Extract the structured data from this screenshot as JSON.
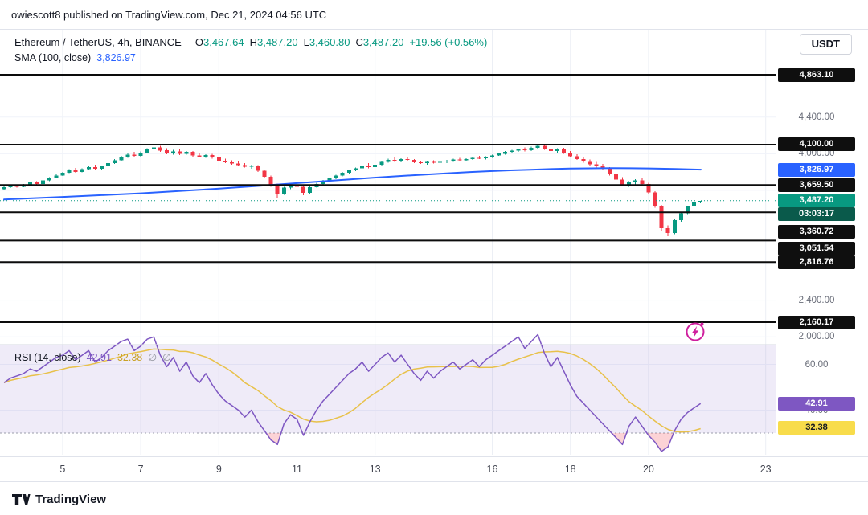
{
  "publish_bar": {
    "text": "owiescott8 published on TradingView.com, Dec 21, 2024 04:56 UTC"
  },
  "header": {
    "symbol_title": "Ethereum / TetherUS, 4h, BINANCE",
    "ohlc": {
      "o_label": "O",
      "o": "3,467.64",
      "h_label": "H",
      "h": "3,487.20",
      "l_label": "L",
      "l": "3,460.80",
      "c_label": "C",
      "c": "3,487.20",
      "change": "+19.56 (+0.56%)"
    },
    "sma_label": "SMA (100, close)",
    "sma_value": "3,826.97",
    "currency_button": "USDT"
  },
  "rsi_legend": {
    "label": "RSI (14, close)",
    "value": "42.91",
    "ma_value": "32.38",
    "empty1": "∅",
    "empty2": "∅"
  },
  "axis": {
    "ticks_main": [
      {
        "text": "4,400.00",
        "price": 4400
      },
      {
        "text": "4,000.00",
        "price": 4000
      },
      {
        "text": "2,400.00",
        "price": 2400
      },
      {
        "text": "2,000.00",
        "price": 2000
      }
    ],
    "ticks_rsi": [
      {
        "text": "60.00",
        "value": 60
      },
      {
        "text": "40.00",
        "value": 40
      }
    ],
    "level_badges": [
      {
        "text": "4,863.10"
      },
      {
        "text": "4,100.00"
      },
      {
        "text": "3,659.50"
      },
      {
        "text": "3,360.72"
      },
      {
        "text": "3,051.54"
      },
      {
        "text": "2,816.76"
      },
      {
        "text": "2,160.17"
      }
    ],
    "sma_badge": {
      "text": "3,826.97"
    },
    "price_badge": {
      "text": "3,487.20"
    },
    "countdown_badge": {
      "text": "03:03:17"
    },
    "rsi_badge": {
      "text": "42.91"
    },
    "rsi_ma_badge": {
      "text": "32.38"
    }
  },
  "x_axis": {
    "labels": [
      {
        "text": "5",
        "day": 5
      },
      {
        "text": "7",
        "day": 7
      },
      {
        "text": "9",
        "day": 9
      },
      {
        "text": "11",
        "day": 11
      },
      {
        "text": "13",
        "day": 13
      },
      {
        "text": "16",
        "day": 16
      },
      {
        "text": "18",
        "day": 18
      },
      {
        "text": "20",
        "day": 20
      },
      {
        "text": "23",
        "day": 23
      }
    ]
  },
  "footer": {
    "brand": "TradingView"
  },
  "colors": {
    "up": "#089981",
    "down": "#f23645",
    "sma": "#2962ff",
    "rsi": "#7e57c2",
    "rsi_ma": "#e8c14a",
    "level": "#0c0c0c",
    "badge_dark": "#0f0f0f",
    "badge_countdown": "#0a5a4b",
    "badge_yellow": "#f8dc4b",
    "flash": "#cf1f9e"
  },
  "chart_data": {
    "type": "candlestick",
    "title": "Ethereum / TetherUS, 4h, BINANCE",
    "timeframe": "4h",
    "quote_currency": "USDT",
    "current_price": 3487.2,
    "sma_value": 3826.97,
    "rsi_value": 42.91,
    "rsi_ma_value": 32.38,
    "rsi_band": [
      30,
      70
    ],
    "levels": [
      4863.1,
      4100.0,
      3659.5,
      3360.72,
      3051.54,
      2816.76,
      2160.17
    ],
    "price_axis_range": [
      2000,
      4900
    ],
    "x_range_days": [
      "Dec 3",
      "Dec 21"
    ],
    "candles": [
      [
        3615,
        3642,
        3598,
        3634
      ],
      [
        3634,
        3656,
        3626,
        3648
      ],
      [
        3648,
        3661,
        3629,
        3640
      ],
      [
        3640,
        3671,
        3636,
        3664
      ],
      [
        3664,
        3694,
        3659,
        3687
      ],
      [
        3687,
        3699,
        3657,
        3670
      ],
      [
        3670,
        3716,
        3666,
        3709
      ],
      [
        3709,
        3744,
        3701,
        3737
      ],
      [
        3737,
        3774,
        3729,
        3763
      ],
      [
        3763,
        3801,
        3756,
        3793
      ],
      [
        3793,
        3831,
        3786,
        3821
      ],
      [
        3821,
        3846,
        3791,
        3803
      ],
      [
        3803,
        3839,
        3796,
        3831
      ],
      [
        3831,
        3869,
        3823,
        3856
      ],
      [
        3856,
        3881,
        3821,
        3836
      ],
      [
        3836,
        3871,
        3829,
        3863
      ],
      [
        3863,
        3906,
        3856,
        3896
      ],
      [
        3896,
        3941,
        3889,
        3929
      ],
      [
        3929,
        3976,
        3921,
        3963
      ],
      [
        3963,
        4001,
        3953,
        3989
      ],
      [
        3989,
        4021,
        3961,
        3976
      ],
      [
        3976,
        4026,
        3969,
        4013
      ],
      [
        4013,
        4061,
        4006,
        4049
      ],
      [
        4049,
        4091,
        4036,
        4071
      ],
      [
        4071,
        4086,
        4021,
        4036
      ],
      [
        4036,
        4059,
        3996,
        4009
      ],
      [
        4009,
        4041,
        3991,
        4026
      ],
      [
        4026,
        4046,
        3986,
        3999
      ],
      [
        3999,
        4031,
        3991,
        4019
      ],
      [
        4019,
        4029,
        3969,
        3981
      ],
      [
        3981,
        4006,
        3959,
        3969
      ],
      [
        3969,
        3996,
        3956,
        3986
      ],
      [
        3986,
        3999,
        3946,
        3959
      ],
      [
        3959,
        3971,
        3916,
        3926
      ],
      [
        3926,
        3946,
        3896,
        3906
      ],
      [
        3906,
        3929,
        3881,
        3893
      ],
      [
        3893,
        3916,
        3866,
        3876
      ],
      [
        3876,
        3899,
        3849,
        3859
      ],
      [
        3859,
        3881,
        3836,
        3869
      ],
      [
        3869,
        3876,
        3801,
        3813
      ],
      [
        3813,
        3826,
        3736,
        3749
      ],
      [
        3749,
        3761,
        3641,
        3656
      ],
      [
        3656,
        3673,
        3521,
        3561
      ],
      [
        3561,
        3641,
        3549,
        3629
      ],
      [
        3629,
        3666,
        3613,
        3653
      ],
      [
        3653,
        3681,
        3631,
        3641
      ],
      [
        3641,
        3659,
        3546,
        3573
      ],
      [
        3573,
        3646,
        3566,
        3636
      ],
      [
        3636,
        3683,
        3629,
        3671
      ],
      [
        3671,
        3713,
        3663,
        3701
      ],
      [
        3701,
        3739,
        3693,
        3729
      ],
      [
        3729,
        3771,
        3723,
        3761
      ],
      [
        3761,
        3801,
        3753,
        3791
      ],
      [
        3791,
        3829,
        3783,
        3819
      ],
      [
        3819,
        3851,
        3809,
        3841
      ],
      [
        3841,
        3876,
        3833,
        3866
      ],
      [
        3866,
        3896,
        3841,
        3853
      ],
      [
        3853,
        3891,
        3846,
        3881
      ],
      [
        3881,
        3921,
        3873,
        3911
      ],
      [
        3911,
        3946,
        3903,
        3933
      ],
      [
        3933,
        3959,
        3913,
        3923
      ],
      [
        3923,
        3949,
        3906,
        3941
      ],
      [
        3941,
        3961,
        3919,
        3931
      ],
      [
        3931,
        3943,
        3896,
        3906
      ],
      [
        3906,
        3926,
        3889,
        3899
      ],
      [
        3899,
        3919,
        3881,
        3911
      ],
      [
        3911,
        3929,
        3893,
        3901
      ],
      [
        3901,
        3921,
        3886,
        3913
      ],
      [
        3913,
        3931,
        3896,
        3923
      ],
      [
        3923,
        3946,
        3911,
        3936
      ],
      [
        3936,
        3956,
        3921,
        3929
      ],
      [
        3929,
        3951,
        3916,
        3943
      ],
      [
        3943,
        3966,
        3931,
        3956
      ],
      [
        3956,
        3976,
        3941,
        3949
      ],
      [
        3949,
        3971,
        3936,
        3963
      ],
      [
        3963,
        3991,
        3953,
        3983
      ],
      [
        3983,
        4011,
        3976,
        4001
      ],
      [
        4001,
        4029,
        3991,
        4019
      ],
      [
        4019,
        4043,
        4006,
        4033
      ],
      [
        4033,
        4056,
        4021,
        4046
      ],
      [
        4046,
        4069,
        4026,
        4039
      ],
      [
        4039,
        4076,
        4031,
        4063
      ],
      [
        4063,
        4100,
        4053,
        4086
      ],
      [
        4086,
        4099,
        4041,
        4056
      ],
      [
        4056,
        4081,
        4019,
        4031
      ],
      [
        4031,
        4061,
        4009,
        4049
      ],
      [
        4049,
        4066,
        3999,
        4011
      ],
      [
        4011,
        4029,
        3961,
        3973
      ],
      [
        3973,
        3996,
        3931,
        3943
      ],
      [
        3943,
        3966,
        3901,
        3913
      ],
      [
        3913,
        3939,
        3873,
        3886
      ],
      [
        3886,
        3911,
        3849,
        3861
      ],
      [
        3861,
        3889,
        3826,
        3839
      ],
      [
        3839,
        3856,
        3763,
        3776
      ],
      [
        3776,
        3799,
        3706,
        3719
      ],
      [
        3719,
        3743,
        3649,
        3661
      ],
      [
        3661,
        3701,
        3641,
        3693
      ],
      [
        3693,
        3723,
        3666,
        3709
      ],
      [
        3709,
        3729,
        3653,
        3669
      ],
      [
        3669,
        3683,
        3561,
        3576
      ],
      [
        3576,
        3591,
        3411,
        3426
      ],
      [
        3426,
        3441,
        3151,
        3186
      ],
      [
        3186,
        3216,
        3101,
        3136
      ],
      [
        3136,
        3291,
        3121,
        3273
      ],
      [
        3273,
        3361,
        3259,
        3349
      ],
      [
        3349,
        3431,
        3341,
        3423
      ],
      [
        3423,
        3473,
        3416,
        3467.64
      ],
      [
        3467.64,
        3487.2,
        3460.8,
        3487.2
      ]
    ],
    "sma_points": [
      [
        5,
        3500
      ],
      [
        40,
        3514
      ],
      [
        78,
        3528
      ],
      [
        126,
        3548
      ],
      [
        175,
        3568
      ],
      [
        223,
        3593
      ],
      [
        271,
        3618
      ],
      [
        320,
        3648
      ],
      [
        368,
        3678
      ],
      [
        416,
        3708
      ],
      [
        464,
        3738
      ],
      [
        512,
        3764
      ],
      [
        560,
        3788
      ],
      [
        585,
        3800
      ],
      [
        610,
        3810
      ],
      [
        635,
        3819
      ],
      [
        660,
        3826
      ],
      [
        685,
        3833
      ],
      [
        709,
        3838
      ],
      [
        735,
        3841
      ],
      [
        760,
        3843
      ],
      [
        785,
        3842
      ],
      [
        807,
        3840
      ],
      [
        840,
        3834
      ],
      [
        872,
        3827
      ]
    ],
    "rsi": [
      52,
      54,
      55,
      56,
      58,
      57,
      59,
      61,
      63,
      64,
      66,
      62,
      64,
      66,
      61,
      63,
      66,
      68,
      70,
      71,
      66,
      68,
      71,
      72,
      64,
      59,
      63,
      57,
      61,
      55,
      52,
      56,
      51,
      47,
      44,
      42,
      40,
      37,
      40,
      35,
      31,
      27,
      25,
      34,
      38,
      36,
      29,
      35,
      40,
      44,
      47,
      50,
      53,
      56,
      58,
      61,
      57,
      60,
      63,
      65,
      61,
      64,
      60,
      56,
      53,
      57,
      54,
      57,
      59,
      61,
      58,
      60,
      62,
      59,
      62,
      64,
      66,
      68,
      70,
      72,
      67,
      70,
      73,
      65,
      59,
      63,
      57,
      51,
      46,
      43,
      40,
      37,
      34,
      31,
      28,
      25,
      33,
      37,
      33,
      29,
      26,
      22,
      24,
      31,
      36,
      39,
      41,
      42.91
    ]
  }
}
